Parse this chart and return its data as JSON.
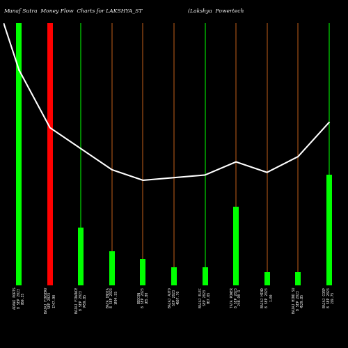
{
  "title_left": "Munaf Sutra  Money Flow  Charts for LAKSHYA_ST",
  "title_right": "(Lakshya  Powertech",
  "background_color": "#000000",
  "line_color": "#ffffff",
  "categories": [
    "ADANI PORTS\n8 SEP 2023\n869.35",
    "BAJAJ FINSERV\nSEP 2023\n1747.90",
    "BAJAJ FINANCE\n8 SEP 2023\n7459.85",
    "BATA INDIA\n8 SEP 2023\n1494.55",
    "BIOCON\n8 SEP 2023\n265.80",
    "BAJAJ AUTO\nSEP 2023\n4607.70",
    "BAJAJ ELEC\nSEP 2023\n667.65",
    "TATA POWER\n8 SEP 2023\n248.90 R",
    "BAJAJ HIND\n8 SEP 2023\n1.00",
    "BAJAJ HIND SU\n8 SEP 2023\n4529.85",
    "BAJAJ CORP\n8 SEP 2023\n219.75"
  ],
  "bar_heights": [
    1.0,
    1.0,
    0.22,
    0.13,
    0.1,
    0.07,
    0.07,
    0.3,
    0.05,
    0.05,
    0.42
  ],
  "bar_is_positive": [
    true,
    false,
    true,
    true,
    true,
    true,
    true,
    true,
    true,
    true,
    true
  ],
  "line_values": [
    0.82,
    0.6,
    0.52,
    0.44,
    0.4,
    0.41,
    0.42,
    0.47,
    0.43,
    0.49,
    0.62
  ],
  "thin_line_colors": [
    "#00bb00",
    "#8b4513",
    "#00bb00",
    "#8b4513",
    "#8b4513",
    "#8b4513",
    "#00bb00",
    "#8b4513",
    "#8b4513",
    "#8b4513",
    "#00bb00"
  ],
  "ylim": [
    0.0,
    1.0
  ],
  "num_bars": 11
}
